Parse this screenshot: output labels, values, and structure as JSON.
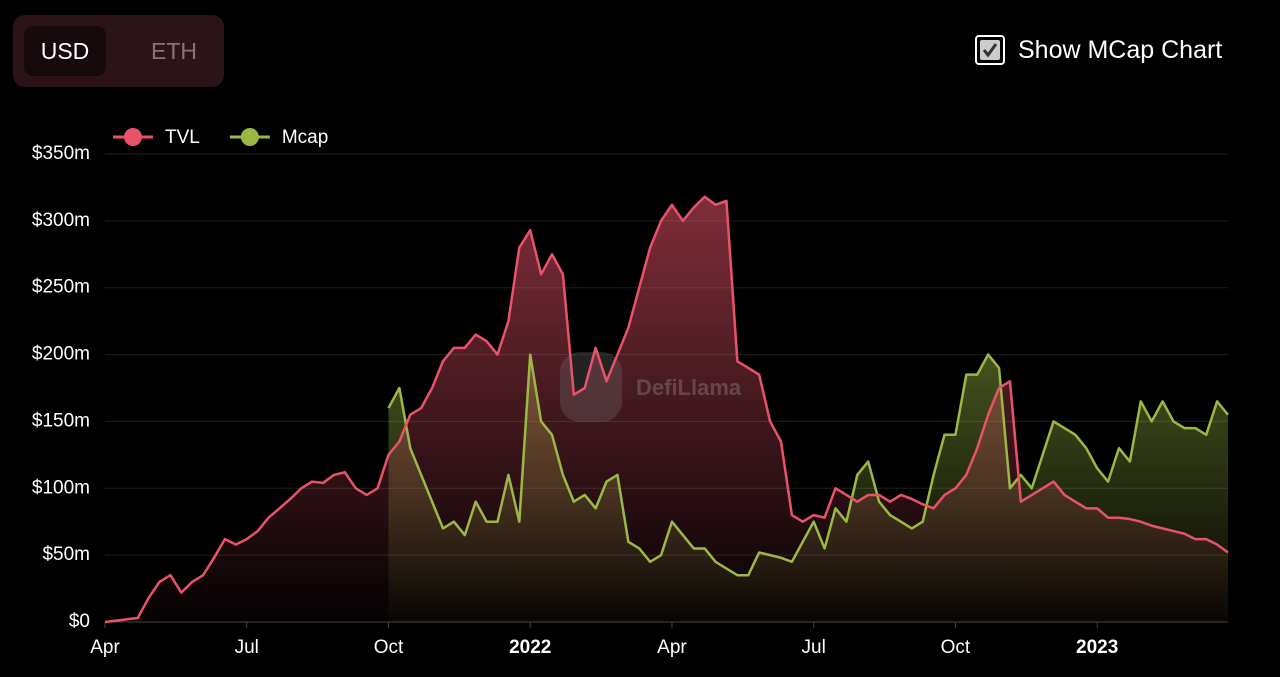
{
  "ui": {
    "currency_options": [
      "USD",
      "ETH"
    ],
    "checkbox_label": "Show MCap Chart"
  },
  "chart_data": {
    "type": "area-line",
    "watermark": "DefiLlama",
    "x": [
      0,
      1,
      2,
      3,
      4,
      5,
      6,
      7,
      8,
      9,
      10,
      11,
      12,
      13,
      14,
      15,
      16,
      17,
      18,
      19,
      20,
      21,
      22,
      23,
      24,
      25,
      26,
      27,
      28,
      29,
      30,
      31,
      32,
      33,
      34,
      35,
      36,
      37,
      38,
      39,
      40,
      41,
      42,
      43,
      44,
      45,
      46,
      47,
      48,
      49,
      50,
      51,
      52,
      53,
      54,
      55,
      56,
      57,
      58,
      59,
      60,
      61,
      62,
      63,
      64,
      65,
      66,
      67,
      68,
      69,
      70,
      71,
      72,
      73,
      74,
      75,
      76,
      77,
      78,
      79,
      80,
      81,
      82,
      83,
      84,
      85,
      86,
      87,
      88,
      89,
      90,
      91,
      92,
      93,
      94,
      95,
      96,
      97,
      98,
      99,
      100,
      101,
      102,
      103
    ],
    "xlim": [
      0,
      103
    ],
    "xticks": [
      {
        "value": 0,
        "label": "Apr"
      },
      {
        "value": 13,
        "label": "Jul"
      },
      {
        "value": 26,
        "label": "Oct"
      },
      {
        "value": 39,
        "label": "2022"
      },
      {
        "value": 52,
        "label": "Apr"
      },
      {
        "value": 65,
        "label": "Jul"
      },
      {
        "value": 78,
        "label": "Oct"
      },
      {
        "value": 91,
        "label": "2023"
      }
    ],
    "ylim": [
      0,
      350000000
    ],
    "yticks": [
      {
        "value": 0,
        "label": "$0"
      },
      {
        "value": 50000000,
        "label": "$50m"
      },
      {
        "value": 100000000,
        "label": "$100m"
      },
      {
        "value": 150000000,
        "label": "$150m"
      },
      {
        "value": 200000000,
        "label": "$200m"
      },
      {
        "value": 250000000,
        "label": "$250m"
      },
      {
        "value": 300000000,
        "label": "$300m"
      },
      {
        "value": 350000000,
        "label": "$350m"
      }
    ],
    "grid": true,
    "legend": "top-left",
    "series": [
      {
        "name": "TVL",
        "color": "#e8536a",
        "values": [
          0,
          1000000,
          2000000,
          3000000,
          18000000,
          30000000,
          35000000,
          22000000,
          30000000,
          35000000,
          48000000,
          62000000,
          58000000,
          62000000,
          68000000,
          78000000,
          85000000,
          92000000,
          100000000,
          105000000,
          104000000,
          110000000,
          112000000,
          100000000,
          95000000,
          100000000,
          125000000,
          135000000,
          155000000,
          160000000,
          175000000,
          195000000,
          205000000,
          205000000,
          215000000,
          210000000,
          200000000,
          225000000,
          280000000,
          293000000,
          260000000,
          275000000,
          260000000,
          170000000,
          175000000,
          205000000,
          180000000,
          200000000,
          220000000,
          250000000,
          280000000,
          300000000,
          312000000,
          300000000,
          310000000,
          318000000,
          312000000,
          315000000,
          195000000,
          190000000,
          185000000,
          150000000,
          135000000,
          80000000,
          75000000,
          80000000,
          78000000,
          100000000,
          95000000,
          90000000,
          95000000,
          95000000,
          90000000,
          95000000,
          92000000,
          88000000,
          85000000,
          95000000,
          100000000,
          110000000,
          130000000,
          155000000,
          175000000,
          180000000,
          90000000,
          95000000,
          100000000,
          105000000,
          95000000,
          90000000,
          85000000,
          85000000,
          78000000,
          78000000,
          77000000,
          75000000,
          72000000,
          70000000,
          68000000,
          66000000,
          62000000,
          62000000,
          58000000,
          52000000
        ]
      },
      {
        "name": "Mcap",
        "color": "#9bb843",
        "values": [
          null,
          null,
          null,
          null,
          null,
          null,
          null,
          null,
          null,
          null,
          null,
          null,
          null,
          null,
          null,
          null,
          null,
          null,
          null,
          null,
          null,
          null,
          null,
          null,
          null,
          null,
          160000000,
          175000000,
          130000000,
          110000000,
          90000000,
          70000000,
          75000000,
          65000000,
          90000000,
          75000000,
          75000000,
          110000000,
          75000000,
          200000000,
          150000000,
          140000000,
          110000000,
          90000000,
          95000000,
          85000000,
          105000000,
          110000000,
          60000000,
          55000000,
          45000000,
          50000000,
          75000000,
          65000000,
          55000000,
          55000000,
          45000000,
          40000000,
          35000000,
          35000000,
          52000000,
          50000000,
          48000000,
          45000000,
          60000000,
          75000000,
          55000000,
          85000000,
          75000000,
          110000000,
          120000000,
          90000000,
          80000000,
          75000000,
          70000000,
          75000000,
          110000000,
          140000000,
          140000000,
          185000000,
          185000000,
          200000000,
          190000000,
          100000000,
          110000000,
          100000000,
          125000000,
          150000000,
          145000000,
          140000000,
          130000000,
          115000000,
          105000000,
          130000000,
          120000000,
          165000000,
          150000000,
          165000000,
          150000000,
          145000000,
          145000000,
          140000000,
          165000000,
          155000000
        ]
      }
    ]
  }
}
